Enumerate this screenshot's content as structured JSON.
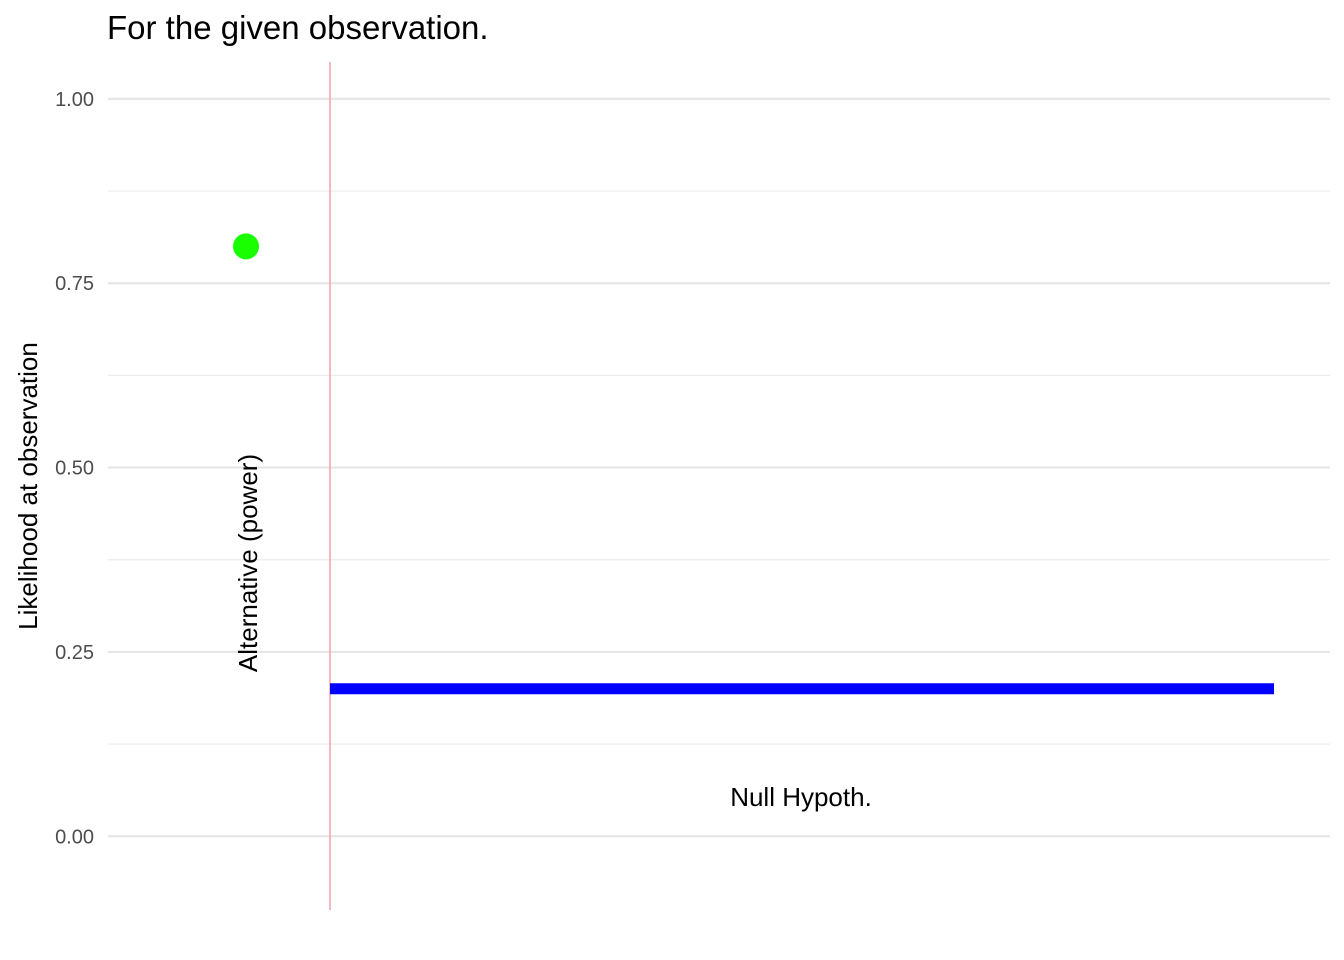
{
  "chart_data": {
    "type": "line",
    "title": "For the given observation.",
    "xlabel": "",
    "ylabel": "Likelihood at observation",
    "ylim": [
      -0.1,
      1.05
    ],
    "y_ticks": [
      0.0,
      0.25,
      0.5,
      0.75,
      1.0
    ],
    "y_tick_labels": [
      "0.00",
      "0.25",
      "0.50",
      "0.75",
      "1.00"
    ],
    "grid": true,
    "x_axis_shown": false,
    "null_hypothesis": {
      "label": "Null Hypoth.",
      "value": 0.2,
      "color": "#0000ff"
    },
    "alternative": {
      "label": "Alternative (power)",
      "value": 0.8,
      "color": "#19ff00"
    },
    "observation_line": {
      "color": "#f4a7b0"
    }
  }
}
